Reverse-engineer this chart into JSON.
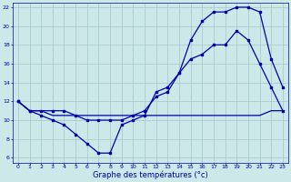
{
  "title": "Graphe des températures (°c)",
  "bg_color": "#cce8e8",
  "grid_color": "#aacccc",
  "line_color": "#0000aa",
  "xlim": [
    -0.5,
    23.5
  ],
  "ylim": [
    5.5,
    22.5
  ],
  "yticks": [
    6,
    8,
    10,
    12,
    14,
    16,
    18,
    20,
    22
  ],
  "xticks": [
    0,
    1,
    2,
    3,
    4,
    5,
    6,
    7,
    8,
    9,
    10,
    11,
    12,
    13,
    14,
    15,
    16,
    17,
    18,
    19,
    20,
    21,
    22,
    23
  ],
  "line1_x": [
    0,
    1,
    2,
    3,
    4,
    5,
    6,
    7,
    8,
    9,
    10,
    11,
    12,
    13,
    14,
    15,
    16,
    17,
    18,
    19,
    20,
    21,
    22,
    23
  ],
  "line1_y": [
    12,
    11,
    10.5,
    10,
    9.5,
    8.5,
    7.5,
    6.5,
    6.5,
    9.5,
    10,
    10.5,
    13,
    13.5,
    15,
    18.5,
    20.5,
    21.5,
    21.5,
    22,
    22,
    21.5,
    16.5,
    13.5
  ],
  "line2_x": [
    0,
    1,
    2,
    3,
    4,
    5,
    6,
    7,
    8,
    9,
    10,
    11,
    12,
    13,
    14,
    15,
    16,
    17,
    18,
    19,
    20,
    21,
    22,
    23
  ],
  "line2_y": [
    12,
    11,
    11,
    11,
    11,
    10.5,
    10,
    10,
    10,
    10,
    10.5,
    11,
    12.5,
    13,
    15,
    16.5,
    17,
    18,
    18,
    19.5,
    18.5,
    16,
    13.5,
    11
  ],
  "line3_x": [
    0,
    1,
    2,
    3,
    4,
    5,
    6,
    7,
    8,
    9,
    10,
    11,
    12,
    13,
    14,
    15,
    16,
    17,
    18,
    19,
    20,
    21,
    22,
    23
  ],
  "line3_y": [
    12,
    11,
    11,
    10.5,
    10.5,
    10.5,
    10.5,
    10.5,
    10.5,
    10.5,
    10.5,
    10.5,
    10.5,
    10.5,
    10.5,
    10.5,
    10.5,
    10.5,
    10.5,
    10.5,
    10.5,
    10.5,
    11,
    11
  ]
}
